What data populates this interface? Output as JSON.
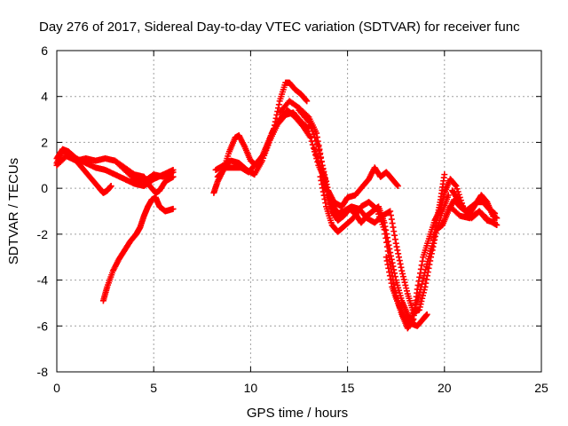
{
  "chart_data": {
    "type": "scatter",
    "title": "Day 276 of 2017, Sidereal Day-to-day VTEC variation (SDTVAR) for receiver func",
    "xlabel": "GPS time / hours",
    "ylabel": "SDTVAR / TECUs",
    "xlim": [
      0,
      25
    ],
    "ylim": [
      -8,
      6
    ],
    "xticks": [
      "0",
      "5",
      "10",
      "15",
      "20",
      "25"
    ],
    "yticks": [
      "-8",
      "-6",
      "-4",
      "-2",
      "0",
      "2",
      "4",
      "6"
    ],
    "grid": true,
    "legend": "none",
    "marker": "+",
    "series_color": "#ff0000",
    "series": [
      {
        "values": [
          [
            0,
            1.3
          ],
          [
            0.3,
            1.7
          ],
          [
            0.6,
            1.6
          ],
          [
            1,
            1.3
          ],
          [
            1.5,
            1.1
          ],
          [
            2,
            0.9
          ],
          [
            2.5,
            0.8
          ],
          [
            3,
            0.6
          ],
          [
            3.5,
            0.4
          ],
          [
            4,
            0.2
          ],
          [
            4.5,
            0.1
          ],
          [
            5,
            0.4
          ],
          [
            5.5,
            0.6
          ],
          [
            6,
            0.8
          ]
        ]
      },
      {
        "values": [
          [
            0,
            1.1
          ],
          [
            0.3,
            1.6
          ],
          [
            0.7,
            1.5
          ],
          [
            1,
            1.2
          ],
          [
            1.3,
            0.9
          ],
          [
            1.6,
            0.6
          ],
          [
            1.9,
            0.3
          ],
          [
            2.2,
            0.0
          ],
          [
            2.4,
            -0.2
          ],
          [
            2.6,
            -0.1
          ],
          [
            2.8,
            0.1
          ]
        ]
      },
      {
        "values": [
          [
            0,
            1.0
          ],
          [
            0.5,
            1.4
          ],
          [
            1,
            1.2
          ],
          [
            1.5,
            1.3
          ],
          [
            2,
            1.2
          ],
          [
            2.5,
            1.3
          ],
          [
            3,
            1.2
          ],
          [
            3.5,
            0.8
          ],
          [
            4,
            0.4
          ],
          [
            4.5,
            0.3
          ],
          [
            5,
            0.6
          ],
          [
            5.5,
            0.5
          ],
          [
            6,
            0.7
          ]
        ]
      },
      {
        "values": [
          [
            2.4,
            -4.9
          ],
          [
            2.6,
            -4.3
          ],
          [
            2.9,
            -3.6
          ],
          [
            3.2,
            -3.1
          ],
          [
            3.5,
            -2.7
          ],
          [
            3.8,
            -2.3
          ],
          [
            4.1,
            -2.0
          ],
          [
            4.3,
            -1.7
          ],
          [
            4.5,
            -1.2
          ],
          [
            4.7,
            -0.8
          ],
          [
            4.9,
            -0.5
          ],
          [
            5.1,
            -0.4
          ],
          [
            5.3,
            -0.8
          ],
          [
            5.6,
            -1.0
          ],
          [
            6,
            -0.9
          ]
        ]
      },
      {
        "values": [
          [
            3,
            1.2
          ],
          [
            3.5,
            0.9
          ],
          [
            4,
            0.6
          ],
          [
            4.5,
            0.5
          ],
          [
            4.8,
            0.1
          ],
          [
            5.1,
            -0.2
          ],
          [
            5.3,
            -0.1
          ],
          [
            5.6,
            0.3
          ],
          [
            6,
            0.5
          ]
        ]
      },
      {
        "values": [
          [
            8.1,
            -0.2
          ],
          [
            8.3,
            0.3
          ],
          [
            8.6,
            0.8
          ],
          [
            8.9,
            1.6
          ],
          [
            9.2,
            2.2
          ],
          [
            9.4,
            2.3
          ],
          [
            9.7,
            1.8
          ],
          [
            10,
            1.2
          ],
          [
            10.3,
            1.0
          ],
          [
            10.6,
            1.4
          ],
          [
            10.9,
            2.0
          ],
          [
            11.2,
            2.6
          ],
          [
            11.5,
            3.8
          ],
          [
            11.8,
            4.6
          ],
          [
            12,
            4.6
          ],
          [
            12.3,
            4.3
          ],
          [
            12.6,
            4.1
          ],
          [
            12.9,
            3.8
          ]
        ]
      },
      {
        "values": [
          [
            8.2,
            0.8
          ],
          [
            8.6,
            1.0
          ],
          [
            9,
            1.2
          ],
          [
            9.4,
            1.1
          ],
          [
            9.8,
            0.8
          ],
          [
            10.2,
            0.6
          ],
          [
            10.6,
            1.2
          ],
          [
            11,
            2.1
          ],
          [
            11.4,
            2.8
          ],
          [
            11.8,
            3.2
          ],
          [
            12.2,
            3.3
          ],
          [
            12.6,
            2.9
          ],
          [
            13,
            2.6
          ]
        ]
      },
      {
        "values": [
          [
            8.3,
            0.5
          ],
          [
            8.7,
            0.9
          ],
          [
            9.1,
            0.9
          ],
          [
            9.5,
            0.9
          ],
          [
            9.9,
            0.7
          ],
          [
            10.3,
            1.1
          ],
          [
            10.7,
            1.5
          ],
          [
            11.1,
            2.4
          ],
          [
            11.5,
            3.0
          ],
          [
            11.9,
            3.4
          ],
          [
            12.3,
            3.1
          ],
          [
            12.7,
            2.7
          ],
          [
            13.1,
            2.2
          ],
          [
            13.5,
            1.0
          ],
          [
            13.9,
            0.3
          ]
        ]
      },
      {
        "values": [
          [
            11.5,
            3.3
          ],
          [
            12,
            3.8
          ],
          [
            12.5,
            3.5
          ],
          [
            13,
            3.1
          ],
          [
            13.4,
            2.4
          ],
          [
            13.7,
            1.0
          ],
          [
            14,
            -0.1
          ],
          [
            14.3,
            -0.6
          ],
          [
            14.7,
            -0.8
          ],
          [
            15,
            -0.4
          ],
          [
            15.4,
            -0.3
          ],
          [
            15.8,
            0.1
          ],
          [
            16.1,
            0.4
          ],
          [
            16.4,
            0.9
          ],
          [
            16.7,
            0.5
          ],
          [
            17,
            0.7
          ],
          [
            17.3,
            0.4
          ],
          [
            17.6,
            0.1
          ]
        ]
      },
      {
        "values": [
          [
            12.5,
            3.4
          ],
          [
            13,
            2.9
          ],
          [
            13.5,
            1.8
          ],
          [
            13.8,
            0.5
          ],
          [
            14,
            -0.4
          ],
          [
            14.2,
            -1.0
          ],
          [
            14.5,
            -1.4
          ],
          [
            14.8,
            -1.2
          ],
          [
            15.1,
            -0.9
          ],
          [
            15.4,
            -1.1
          ],
          [
            15.7,
            -1.5
          ],
          [
            16,
            -1.2
          ],
          [
            16.3,
            -1.0
          ],
          [
            16.6,
            -0.8
          ],
          [
            16.9,
            -1.5
          ],
          [
            17.2,
            -2.8
          ],
          [
            17.5,
            -4.0
          ],
          [
            17.8,
            -4.9
          ],
          [
            18.1,
            -5.5
          ],
          [
            18.3,
            -5.9
          ],
          [
            18.6,
            -6.0
          ],
          [
            18.9,
            -5.7
          ],
          [
            19.1,
            -5.5
          ]
        ]
      },
      {
        "values": [
          [
            13.3,
            1.7
          ],
          [
            13.6,
            0.9
          ],
          [
            13.9,
            0.0
          ],
          [
            14.2,
            -0.7
          ],
          [
            14.5,
            -1.1
          ],
          [
            14.8,
            -1.0
          ],
          [
            15.2,
            -0.8
          ],
          [
            15.6,
            -0.9
          ],
          [
            16,
            -1.3
          ],
          [
            16.4,
            -1.5
          ],
          [
            16.8,
            -1.2
          ],
          [
            17.2,
            -1.0
          ],
          [
            17.5,
            -2.4
          ],
          [
            17.8,
            -3.6
          ],
          [
            18.1,
            -4.6
          ],
          [
            18.4,
            -5.4
          ],
          [
            18.7,
            -5.3
          ],
          [
            19,
            -4.3
          ],
          [
            19.3,
            -3.0
          ],
          [
            19.6,
            -1.8
          ],
          [
            19.9,
            -1.0
          ],
          [
            20.2,
            -0.3
          ]
        ]
      },
      {
        "values": [
          [
            13.6,
            0.5
          ],
          [
            13.9,
            -0.8
          ],
          [
            14.2,
            -1.6
          ],
          [
            14.5,
            -1.9
          ],
          [
            14.9,
            -1.6
          ],
          [
            15.3,
            -1.3
          ],
          [
            15.7,
            -0.8
          ],
          [
            16.1,
            -0.6
          ],
          [
            16.5,
            -0.9
          ],
          [
            16.9,
            -1.8
          ],
          [
            17.2,
            -3.3
          ],
          [
            17.5,
            -4.7
          ],
          [
            17.8,
            -5.5
          ],
          [
            18.1,
            -6.1
          ],
          [
            18.4,
            -5.7
          ],
          [
            18.6,
            -4.4
          ],
          [
            18.9,
            -3.0
          ],
          [
            19.2,
            -2.2
          ],
          [
            19.5,
            -1.4
          ],
          [
            19.8,
            -0.9
          ],
          [
            20,
            -0.2
          ],
          [
            20.3,
            0.4
          ],
          [
            20.6,
            0.1
          ],
          [
            21,
            -0.9
          ],
          [
            21.4,
            -1.3
          ],
          [
            21.8,
            -1.0
          ],
          [
            22.2,
            -1.4
          ],
          [
            22.6,
            -1.5
          ]
        ]
      },
      {
        "values": [
          [
            17,
            -3.0
          ],
          [
            17.3,
            -4.3
          ],
          [
            17.6,
            -5.0
          ],
          [
            17.9,
            -5.6
          ],
          [
            18.2,
            -5.9
          ],
          [
            18.5,
            -5.2
          ],
          [
            18.8,
            -4.3
          ],
          [
            19.1,
            -3.3
          ],
          [
            19.4,
            -2.4
          ],
          [
            19.6,
            -1.4
          ],
          [
            19.8,
            -0.5
          ],
          [
            20,
            0.6
          ]
        ]
      },
      {
        "values": [
          [
            19.6,
            -1.8
          ],
          [
            19.9,
            -1.6
          ],
          [
            20.2,
            -1.0
          ],
          [
            20.5,
            -0.5
          ],
          [
            20.8,
            -0.8
          ],
          [
            21.1,
            -1.0
          ],
          [
            21.4,
            -0.8
          ],
          [
            21.7,
            -0.6
          ],
          [
            22,
            -0.6
          ],
          [
            22.3,
            -0.9
          ],
          [
            22.6,
            -1.1
          ]
        ]
      },
      {
        "values": [
          [
            20.4,
            -0.1
          ],
          [
            20.7,
            -0.5
          ],
          [
            21,
            -0.9
          ],
          [
            21.3,
            -1.1
          ],
          [
            21.6,
            -0.7
          ],
          [
            21.9,
            -0.3
          ],
          [
            22.2,
            -0.6
          ],
          [
            22.5,
            -1.2
          ],
          [
            22.7,
            -1.3
          ]
        ]
      },
      {
        "values": [
          [
            20.3,
            -0.8
          ],
          [
            20.8,
            -1.2
          ],
          [
            21.3,
            -1.3
          ],
          [
            21.8,
            -1.0
          ],
          [
            22.3,
            -1.4
          ],
          [
            22.7,
            -1.6
          ]
        ]
      }
    ]
  }
}
